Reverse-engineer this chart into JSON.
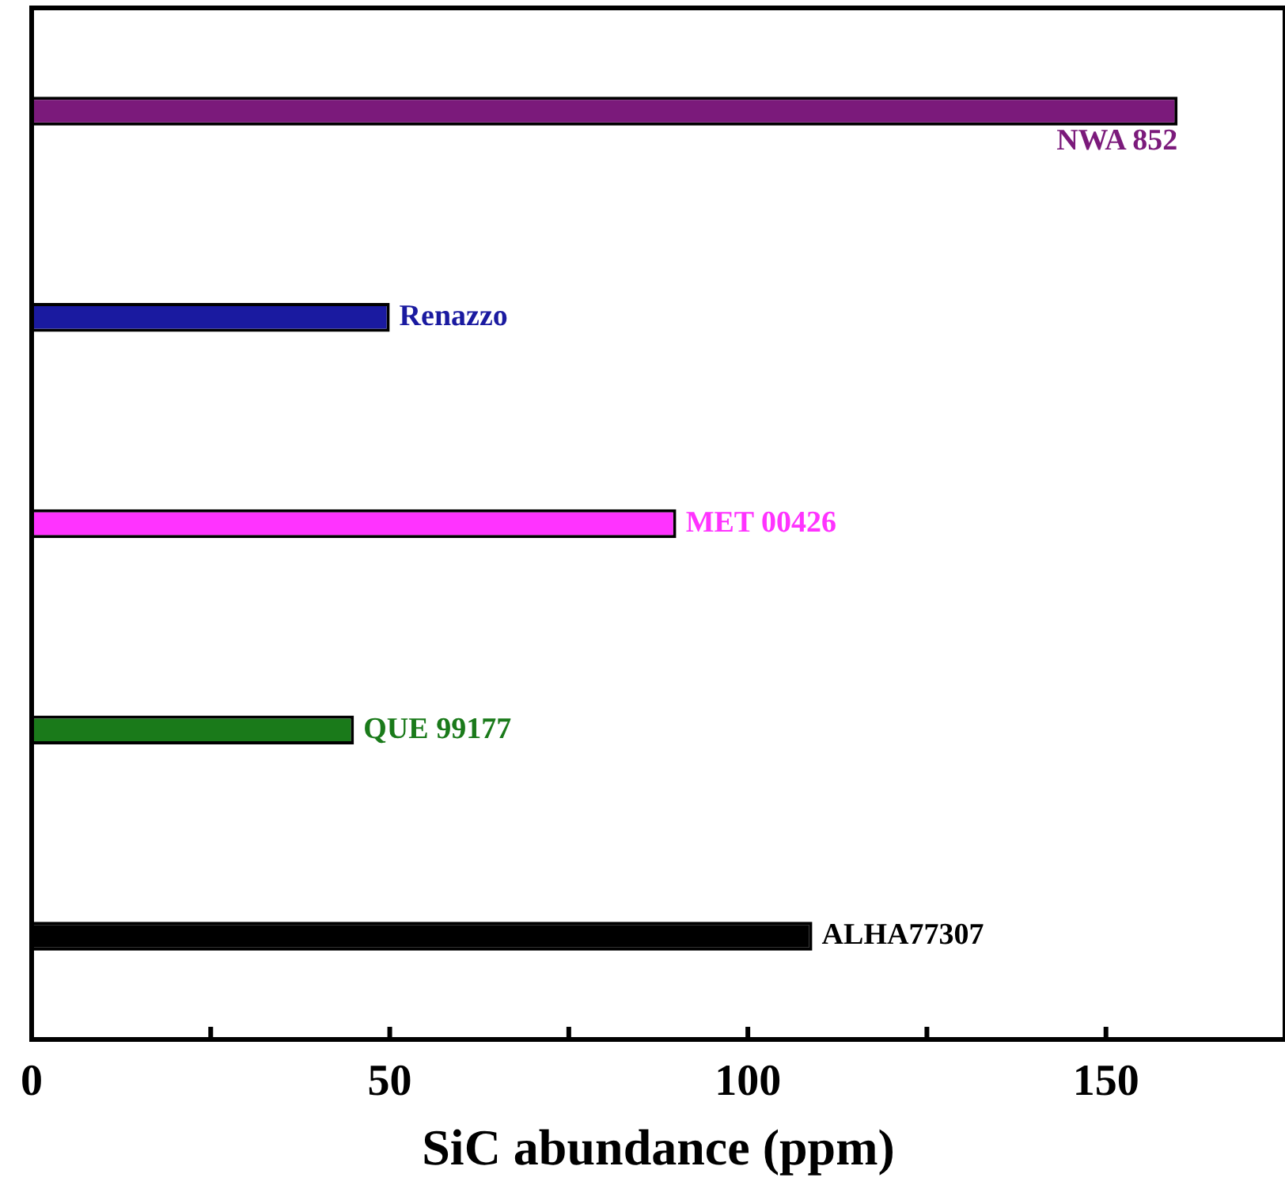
{
  "chart_data": {
    "type": "bar",
    "orientation": "horizontal",
    "xlabel": "SiC abundance (ppm)",
    "categories": [
      "NWA 852",
      "Renazzo",
      "MET 00426",
      "QUE 99177",
      "ALHA77307"
    ],
    "values": [
      160,
      50,
      90,
      45,
      109
    ],
    "colors": [
      "#7b1a7b",
      "#1a1aa0",
      "#ff33ff",
      "#1a7a1a",
      "#000000"
    ],
    "xlim": [
      0,
      175
    ],
    "xticks": [
      0,
      {
        "value": 25,
        "label": null
      },
      50,
      {
        "value": 75,
        "label": null
      },
      100,
      {
        "value": 125,
        "label": null
      },
      150
    ],
    "tick_labels": "x",
    "legend": false,
    "grid": false
  }
}
